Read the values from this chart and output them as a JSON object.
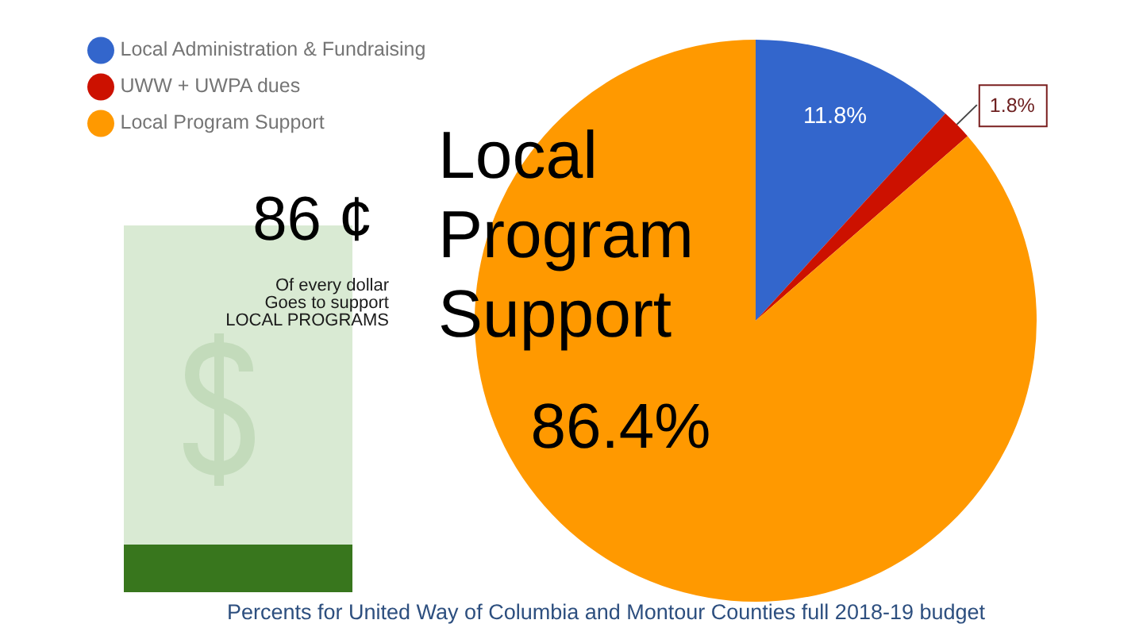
{
  "chart_data": {
    "type": "pie",
    "categories": [
      "Local Administration & Fundraising",
      "UWW + UWPA dues",
      "Local Program Support"
    ],
    "values": [
      11.8,
      1.8,
      86.4
    ],
    "colors": [
      "#3366cc",
      "#cc1100",
      "#ff9900"
    ],
    "value_labels": [
      "11.8%",
      "1.8%",
      "86.4%"
    ],
    "legend": "top left",
    "annotations": [
      "Local Program Support",
      "86 ¢",
      "Of every dollar\nGoes to support\nLOCAL PROGRAMS",
      "Percents for United Way of Columbia and Montour Counties full 2018-19 budget"
    ]
  }
}
